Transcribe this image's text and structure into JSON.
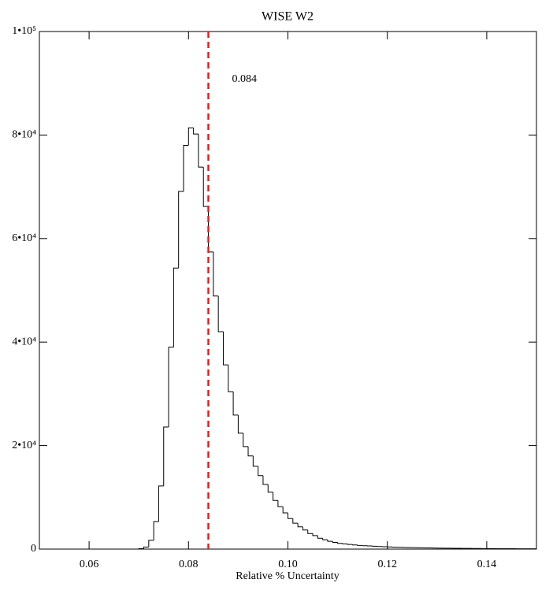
{
  "chart_data": {
    "type": "histogram",
    "title": "WISE W2",
    "x_label": "Relative % Uncertainty",
    "bins": [
      0.07,
      0.071,
      0.072,
      0.073,
      0.074,
      0.075,
      0.076,
      0.077,
      0.078,
      0.079,
      0.08,
      0.081,
      0.082,
      0.083,
      0.084,
      0.085,
      0.086,
      0.087,
      0.088,
      0.089,
      0.09,
      0.091,
      0.092,
      0.093,
      0.094,
      0.095,
      0.096,
      0.097,
      0.098,
      0.099,
      0.1,
      0.101,
      0.102,
      0.103,
      0.104,
      0.105,
      0.106,
      0.107,
      0.108,
      0.109,
      0.11,
      0.111,
      0.112,
      0.113,
      0.114,
      0.115,
      0.116,
      0.117,
      0.118,
      0.119,
      0.12,
      0.121,
      0.122,
      0.123,
      0.124,
      0.125,
      0.126,
      0.127,
      0.128,
      0.129,
      0.13,
      0.131,
      0.132,
      0.133,
      0.134,
      0.135,
      0.136,
      0.137,
      0.138,
      0.139,
      0.14,
      0.141,
      0.142,
      0.143,
      0.144,
      0.145,
      0.146,
      0.147,
      0.148,
      0.149,
      0.15
    ],
    "values": [
      100,
      400,
      1700,
      5300,
      12200,
      23600,
      39000,
      54300,
      69100,
      78000,
      81400,
      80200,
      73800,
      66200,
      57400,
      48900,
      42000,
      35600,
      30400,
      25900,
      22400,
      19800,
      18000,
      16000,
      14200,
      12500,
      11000,
      9400,
      8200,
      7000,
      5900,
      5000,
      4300,
      3700,
      3000,
      2600,
      2100,
      1800,
      1500,
      1300,
      1100,
      1000,
      900,
      800,
      700,
      650,
      600,
      550,
      500,
      450,
      420,
      390,
      360,
      330,
      300,
      280,
      260,
      240,
      220,
      200,
      190,
      180,
      170,
      160,
      150,
      140,
      130,
      120,
      110,
      100,
      95,
      90,
      85,
      80,
      75,
      70,
      65,
      60,
      55,
      50
    ],
    "color": "#000000",
    "xlim": [
      0.05,
      0.15
    ],
    "xticks": [
      0.06,
      0.08,
      {
        "value": 0.1,
        "label": "0.10"
      },
      0.12,
      0.14
    ],
    "ylim": [
      0,
      100000
    ],
    "yticks": [
      0,
      {
        "value": 20000,
        "label": "2•10⁴"
      },
      {
        "value": 40000,
        "label": "4•10⁴"
      },
      {
        "value": 60000,
        "label": "6•10⁴"
      },
      {
        "value": 80000,
        "label": "8•10⁴"
      },
      {
        "value": 100000,
        "label": "1•10⁵"
      }
    ],
    "reference_line": {
      "value": 0.084,
      "label": "0.084",
      "color": "#e02020"
    }
  }
}
